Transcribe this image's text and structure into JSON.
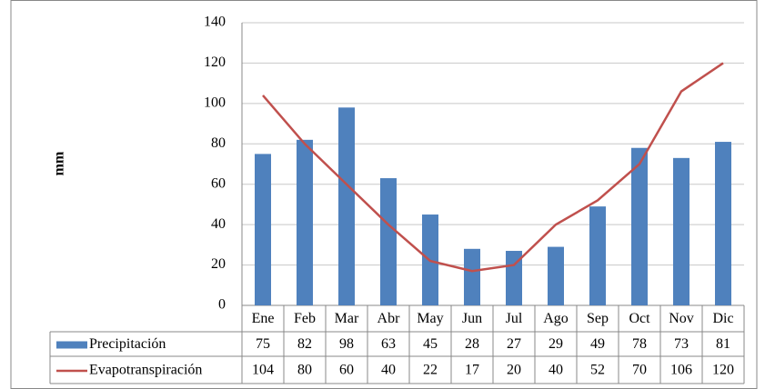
{
  "chart_data": {
    "type": "bar",
    "y_label": "mm",
    "categories": [
      "Ene",
      "Feb",
      "Mar",
      "Abr",
      "May",
      "Jun",
      "Jul",
      "Ago",
      "Sep",
      "Oct",
      "Nov",
      "Dic"
    ],
    "series": [
      {
        "name": "Precipitación",
        "type": "bar",
        "color": "#4f81bd",
        "values": [
          75,
          82,
          98,
          63,
          45,
          28,
          27,
          29,
          49,
          78,
          73,
          81
        ]
      },
      {
        "name": "Evapotranspiración",
        "type": "line",
        "color": "#c0504d",
        "values": [
          104,
          80,
          60,
          40,
          22,
          17,
          20,
          40,
          52,
          70,
          106,
          120
        ]
      }
    ],
    "ylim": [
      0,
      140
    ],
    "yticks": [
      0,
      20,
      40,
      60,
      80,
      100,
      120,
      140
    ],
    "grid": true
  }
}
